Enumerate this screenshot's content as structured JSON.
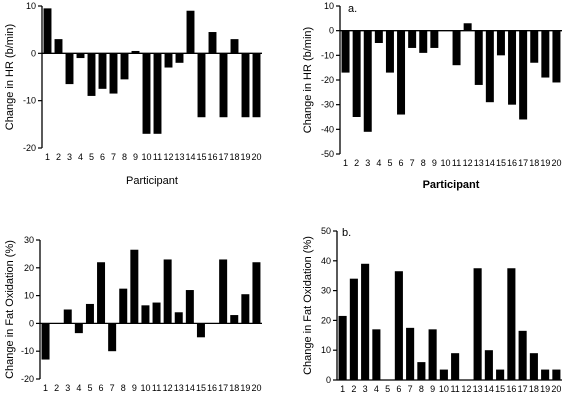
{
  "chart_data": [
    {
      "id": "hr-left",
      "type": "bar",
      "title": "",
      "panel_label": "",
      "xlabel": "Participant",
      "ylabel": "Change in HR (b/min)",
      "ylim": [
        -20,
        10
      ],
      "yticks": [
        -20,
        -10,
        0,
        10
      ],
      "categories": [
        "1",
        "2",
        "3",
        "4",
        "5",
        "6",
        "7",
        "8",
        "9",
        "10",
        "11",
        "12",
        "13",
        "14",
        "15",
        "16",
        "17",
        "18",
        "19",
        "20"
      ],
      "values": [
        9.5,
        3,
        -6.5,
        -1,
        -9,
        -7.5,
        -8.5,
        -5.5,
        0.5,
        -17,
        -17,
        -3,
        -2,
        9,
        -13.5,
        4.5,
        -13.5,
        3,
        -13.5,
        -13.5
      ],
      "xaxis_at": 0,
      "grid": false
    },
    {
      "id": "hr-right",
      "type": "bar",
      "title": "",
      "panel_label": "a.",
      "xlabel": "Participant",
      "ylabel": "Change in HR (b/min)",
      "ylim": [
        -50,
        10
      ],
      "yticks": [
        -50,
        -40,
        -30,
        -20,
        -10,
        0,
        10
      ],
      "categories": [
        "1",
        "2",
        "3",
        "4",
        "5",
        "6",
        "7",
        "8",
        "9",
        "10",
        "11",
        "12",
        "13",
        "14",
        "15",
        "16",
        "17",
        "18",
        "19",
        "20"
      ],
      "values": [
        -17,
        -35,
        -41,
        -5,
        -17,
        -34,
        -7,
        -9,
        -7,
        0,
        -14,
        3,
        -22,
        -29,
        -10,
        -30,
        -36,
        -13,
        -19,
        -21
      ],
      "xaxis_at": 0,
      "grid": false
    },
    {
      "id": "fat-left",
      "type": "bar",
      "title": "",
      "panel_label": "",
      "xlabel": "",
      "ylabel": "Change in Fat Oxidation (%)",
      "ylim": [
        -20,
        30
      ],
      "yticks": [
        -20,
        -10,
        0,
        10,
        20,
        30
      ],
      "categories": [
        "1",
        "2",
        "3",
        "4",
        "5",
        "6",
        "7",
        "8",
        "9",
        "10",
        "11",
        "12",
        "13",
        "14",
        "15",
        "16",
        "17",
        "18",
        "19",
        "20"
      ],
      "values": [
        -13,
        0,
        5,
        -3.5,
        7,
        22,
        -10,
        12.5,
        26.5,
        6.5,
        7.5,
        23,
        4,
        12,
        -5,
        0,
        23,
        3,
        10.5,
        22
      ],
      "xaxis_at": 0,
      "grid": false
    },
    {
      "id": "fat-right",
      "type": "bar",
      "title": "",
      "panel_label": "b.",
      "xlabel": "",
      "ylabel": "Change in Fat Oxidation (%)",
      "ylim": [
        0,
        50
      ],
      "yticks": [
        0,
        10,
        20,
        30,
        40,
        50
      ],
      "categories": [
        "1",
        "2",
        "3",
        "4",
        "5",
        "6",
        "7",
        "8",
        "9",
        "10",
        "11",
        "12",
        "13",
        "14",
        "15",
        "16",
        "17",
        "18",
        "19",
        "20"
      ],
      "values": [
        21.5,
        34,
        39,
        17,
        0,
        36.5,
        17.5,
        6,
        17,
        3.5,
        9,
        0,
        37.5,
        10,
        3.5,
        37.5,
        16.5,
        9,
        3.5,
        3.5
      ],
      "xaxis_at": 0,
      "grid": false
    }
  ]
}
